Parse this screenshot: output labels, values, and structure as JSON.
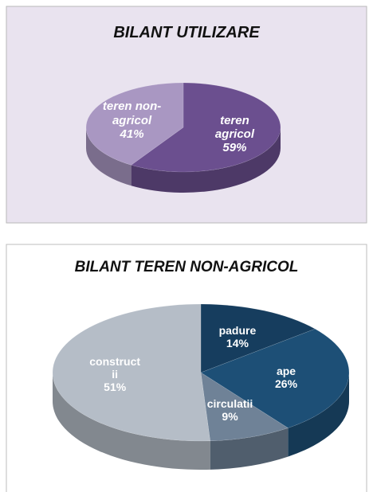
{
  "chart_data": [
    {
      "type": "pie",
      "title": "BILANT UTILIZARE",
      "categories": [
        "teren agricol",
        "teren non-agricol"
      ],
      "values": [
        59,
        41
      ],
      "value_labels": [
        "59%",
        "41%"
      ],
      "colors": [
        "#6b4f8f",
        "#a997c2"
      ]
    },
    {
      "type": "pie",
      "title": "BILANT TEREN NON-AGRICOL",
      "categories": [
        "padure",
        "ape",
        "circulatii",
        "constructii"
      ],
      "values": [
        14,
        26,
        9,
        51
      ],
      "value_labels": [
        "14%",
        "26%",
        "9%",
        "51%"
      ],
      "colors": [
        "#163d5e",
        "#1d4f76",
        "#6f8297",
        "#b5bdc7"
      ]
    }
  ]
}
